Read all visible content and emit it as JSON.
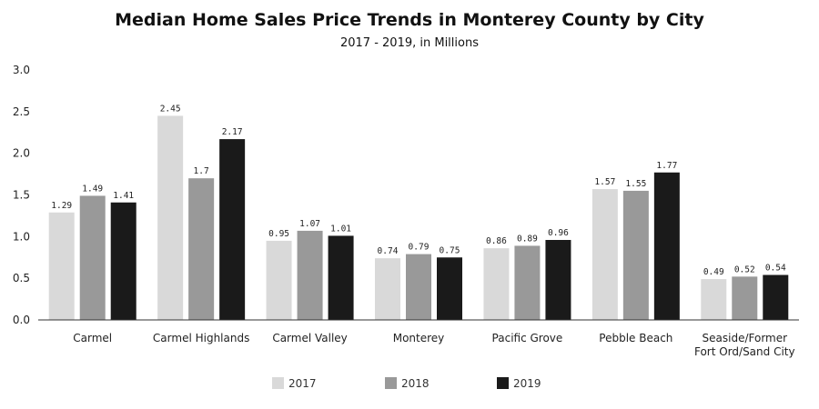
{
  "chart_data": {
    "type": "bar",
    "title": "Median Home Sales Price Trends in Monterey County by City",
    "subtitle": "2017 - 2019, in Millions",
    "xlabel": "",
    "ylabel": "",
    "ylim": [
      0,
      3.0
    ],
    "yticks": [
      "0.0",
      "0.5",
      "1.0",
      "1.5",
      "2.0",
      "2.5",
      "3.0"
    ],
    "categories": [
      [
        "Carmel"
      ],
      [
        "Carmel Highlands"
      ],
      [
        "Carmel Valley"
      ],
      [
        "Monterey"
      ],
      [
        "Pacific Grove"
      ],
      [
        "Pebble Beach"
      ],
      [
        "Seaside/Former",
        "Fort Ord/Sand City"
      ]
    ],
    "series": [
      {
        "name": "2017",
        "color": "#d9d9d9",
        "values": [
          1.29,
          2.45,
          0.95,
          0.74,
          0.86,
          1.57,
          0.49
        ],
        "labels": [
          "1.29",
          "2.45",
          "0.95",
          "0.74",
          "0.86",
          "1.57",
          "0.49"
        ]
      },
      {
        "name": "2018",
        "color": "#999999",
        "values": [
          1.49,
          1.7,
          1.07,
          0.79,
          0.89,
          1.55,
          0.52
        ],
        "labels": [
          "1.49",
          "1.7",
          "1.07",
          "0.79",
          "0.89",
          "1.55",
          "0.52"
        ]
      },
      {
        "name": "2019",
        "color": "#1a1a1a",
        "values": [
          1.41,
          2.17,
          1.01,
          0.75,
          0.96,
          1.77,
          0.54
        ],
        "labels": [
          "1.41",
          "2.17",
          "1.01",
          "0.75",
          "0.96",
          "1.77",
          "0.54"
        ]
      }
    ],
    "legend_position": "bottom"
  }
}
